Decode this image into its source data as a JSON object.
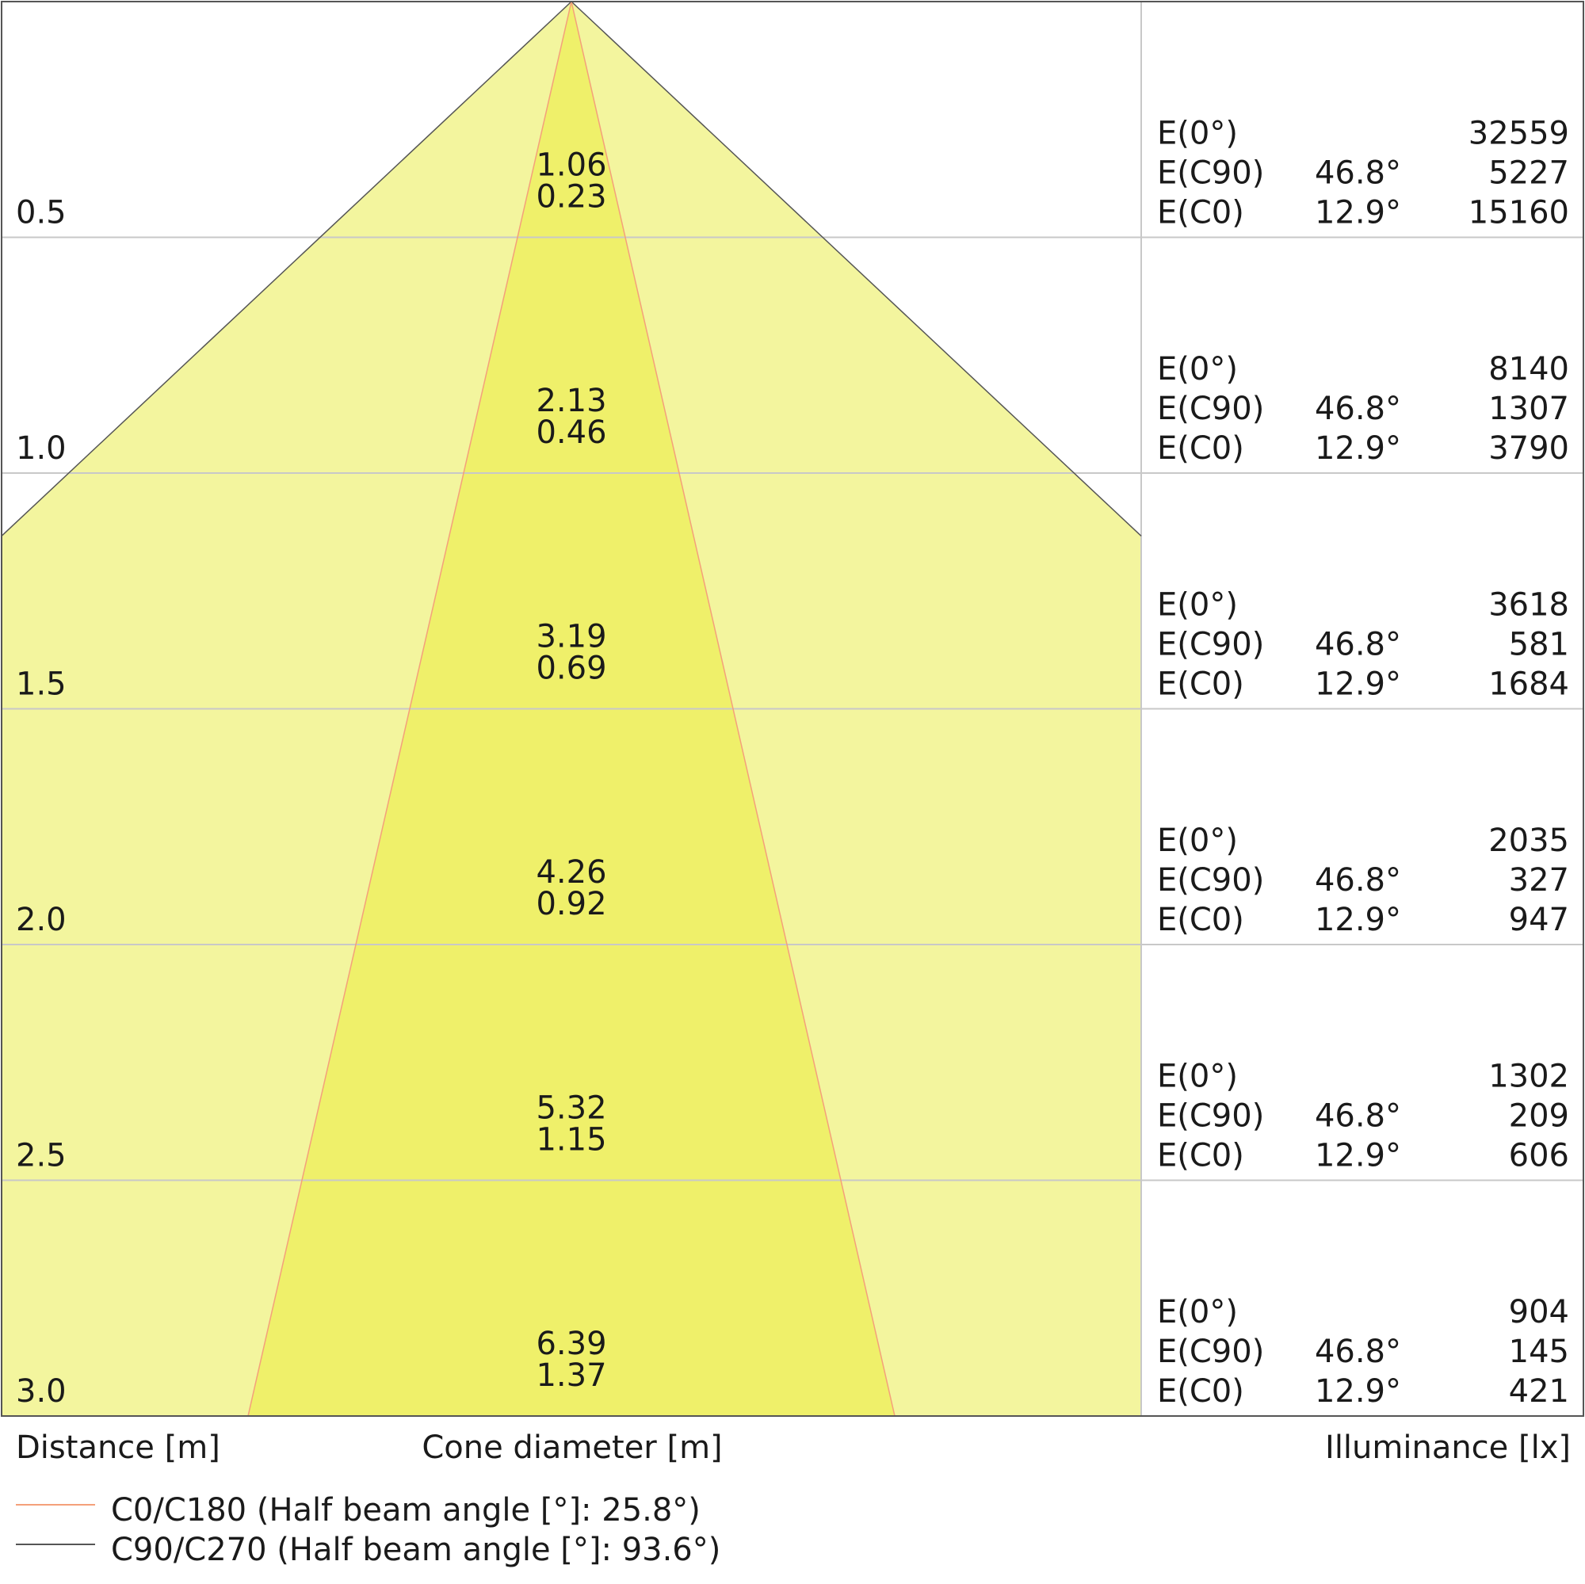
{
  "chart_data": {
    "type": "area",
    "distances": [
      "0.5",
      "1.0",
      "1.5",
      "2.0",
      "2.5",
      "3.0"
    ],
    "distance_values": [
      0.5,
      1.0,
      1.5,
      2.0,
      2.5,
      3.0
    ],
    "cone_diameter_c90": [
      "1.06",
      "2.13",
      "3.19",
      "4.26",
      "5.32",
      "6.39"
    ],
    "cone_diameter_c0": [
      "0.23",
      "0.46",
      "0.69",
      "0.92",
      "1.15",
      "1.37"
    ],
    "illuminance": [
      {
        "e0_label": "E(0°)",
        "e0": "32559",
        "c90_label": "E(C90)",
        "c90_angle": "46.8°",
        "c90": "5227",
        "c0_label": "E(C0)",
        "c0_angle": "12.9°",
        "c0": "15160"
      },
      {
        "e0_label": "E(0°)",
        "e0": "8140",
        "c90_label": "E(C90)",
        "c90_angle": "46.8°",
        "c90": "1307",
        "c0_label": "E(C0)",
        "c0_angle": "12.9°",
        "c0": "3790"
      },
      {
        "e0_label": "E(0°)",
        "e0": "3618",
        "c90_label": "E(C90)",
        "c90_angle": "46.8°",
        "c90": "581",
        "c0_label": "E(C0)",
        "c0_angle": "12.9°",
        "c0": "1684"
      },
      {
        "e0_label": "E(0°)",
        "e0": "2035",
        "c90_label": "E(C90)",
        "c90_angle": "46.8°",
        "c90": "327",
        "c0_label": "E(C0)",
        "c0_angle": "12.9°",
        "c0": "947"
      },
      {
        "e0_label": "E(0°)",
        "e0": "1302",
        "c90_label": "E(C90)",
        "c90_angle": "46.8°",
        "c90": "209",
        "c0_label": "E(C0)",
        "c0_angle": "12.9°",
        "c0": "606"
      },
      {
        "e0_label": "E(0°)",
        "e0": "904",
        "c90_label": "E(C90)",
        "c90_angle": "46.8°",
        "c90": "145",
        "c0_label": "E(C0)",
        "c0_angle": "12.9°",
        "c0": "421"
      }
    ],
    "half_beam_angle_c0": 25.8,
    "half_beam_angle_c90": 93.6,
    "xlabel_distance": "Distance [m]",
    "xlabel_cone": "Cone diameter [m]",
    "xlabel_illuminance": "Illuminance [lx]",
    "legend": [
      {
        "label": "C0/C180 (Half beam angle [°]: 25.8°)",
        "color": "#f4a07a"
      },
      {
        "label": "C90/C270 (Half beam angle [°]: 93.6°)",
        "color": "#555555"
      }
    ],
    "colors": {
      "wide_cone": "#f3f59e",
      "narrow_cone": "#eff06a",
      "c0_line": "#f4a07a",
      "c90_line": "#555555",
      "grid": "#c8c8c8",
      "frame": "#555555"
    }
  }
}
